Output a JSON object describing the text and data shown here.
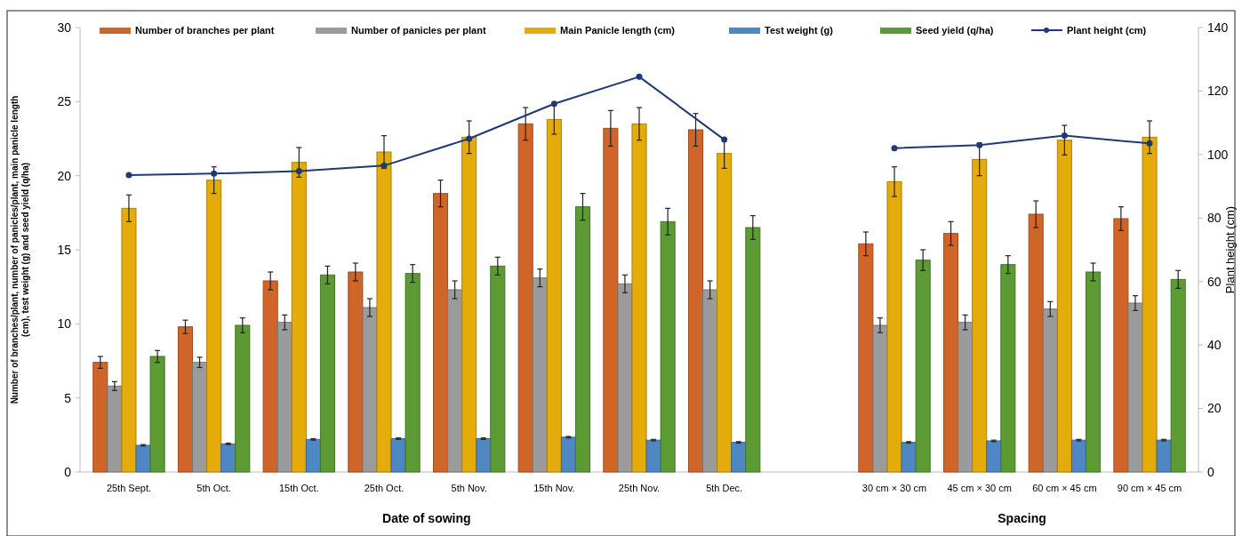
{
  "chart_data": {
    "type": "bar",
    "xlabel": "Date of sowing",
    "ylabel": "Number of branches/plant, number of panicles/plant, main panicle length (cm), test weight (g) and seed yield (q/ha)",
    "y2label": "Plant height (cm)",
    "annotations": [
      "Spacing"
    ],
    "categories": [
      "25th Sept.",
      "5th Oct.",
      "15th Oct.",
      "25th Oct.",
      "5th Nov.",
      "15th Nov.",
      "25th Nov.",
      "5th Dec.",
      null,
      "30 cm × 30 cm",
      "45 cm × 30 cm",
      "60 cm × 45 cm",
      "90 cm × 45 cm"
    ],
    "series": [
      {
        "name": "Number of branches per plant",
        "color": "#cf6529",
        "values": [
          7.4,
          9.8,
          12.9,
          13.5,
          18.8,
          23.5,
          23.2,
          23.1,
          null,
          15.4,
          16.1,
          17.4,
          17.1
        ],
        "errors": [
          0.4,
          0.45,
          0.6,
          0.6,
          0.9,
          1.1,
          1.2,
          1.1,
          null,
          0.8,
          0.8,
          0.9,
          0.8
        ]
      },
      {
        "name": "Number of panicles per plant",
        "color": "#9b9b9b",
        "values": [
          5.8,
          7.4,
          10.1,
          11.1,
          12.3,
          13.1,
          12.7,
          12.3,
          null,
          9.9,
          10.1,
          11.0,
          11.4
        ],
        "errors": [
          0.3,
          0.35,
          0.5,
          0.6,
          0.6,
          0.6,
          0.6,
          0.6,
          null,
          0.5,
          0.5,
          0.5,
          0.5
        ]
      },
      {
        "name": "Main Panicle length (cm)",
        "color": "#e4ab0b",
        "values": [
          17.8,
          19.7,
          20.9,
          21.6,
          22.6,
          23.8,
          23.5,
          21.5,
          null,
          19.6,
          21.1,
          22.4,
          22.6
        ],
        "errors": [
          0.9,
          0.9,
          1.0,
          1.1,
          1.1,
          1.0,
          1.1,
          1.0,
          null,
          1.0,
          1.1,
          1.0,
          1.1
        ]
      },
      {
        "name": "Test weight (g)",
        "color": "#4f87c4",
        "values": [
          1.8,
          1.9,
          2.2,
          2.25,
          2.25,
          2.35,
          2.15,
          2.0,
          null,
          2.0,
          2.1,
          2.15,
          2.15
        ],
        "errors": [
          0.05,
          0.05,
          0.05,
          0.05,
          0.05,
          0.05,
          0.05,
          0.05,
          null,
          0.05,
          0.05,
          0.05,
          0.05
        ]
      },
      {
        "name": "Seed yield (q/ha)",
        "color": "#5c9a34",
        "values": [
          7.8,
          9.9,
          13.3,
          13.4,
          13.9,
          17.9,
          16.9,
          16.5,
          null,
          14.3,
          14.0,
          13.5,
          13.0
        ],
        "errors": [
          0.4,
          0.5,
          0.6,
          0.6,
          0.6,
          0.9,
          0.9,
          0.8,
          null,
          0.7,
          0.6,
          0.6,
          0.6
        ]
      },
      {
        "name": "Plant height (cm)",
        "type": "line",
        "axis": "y2",
        "marker": "circle",
        "color": "#1f3a73",
        "values": [
          93.5,
          94,
          94.8,
          96.5,
          105,
          116,
          124.5,
          104.7,
          null,
          102,
          103,
          106,
          103.5
        ]
      }
    ],
    "ylim": [
      0,
      30
    ],
    "yticks": [
      0,
      5,
      10,
      15,
      20,
      25,
      30
    ],
    "y2lim": [
      0,
      140
    ],
    "y2ticks": [
      0,
      20,
      40,
      60,
      80,
      100,
      120,
      140
    ],
    "legend": "top",
    "grid": false
  }
}
